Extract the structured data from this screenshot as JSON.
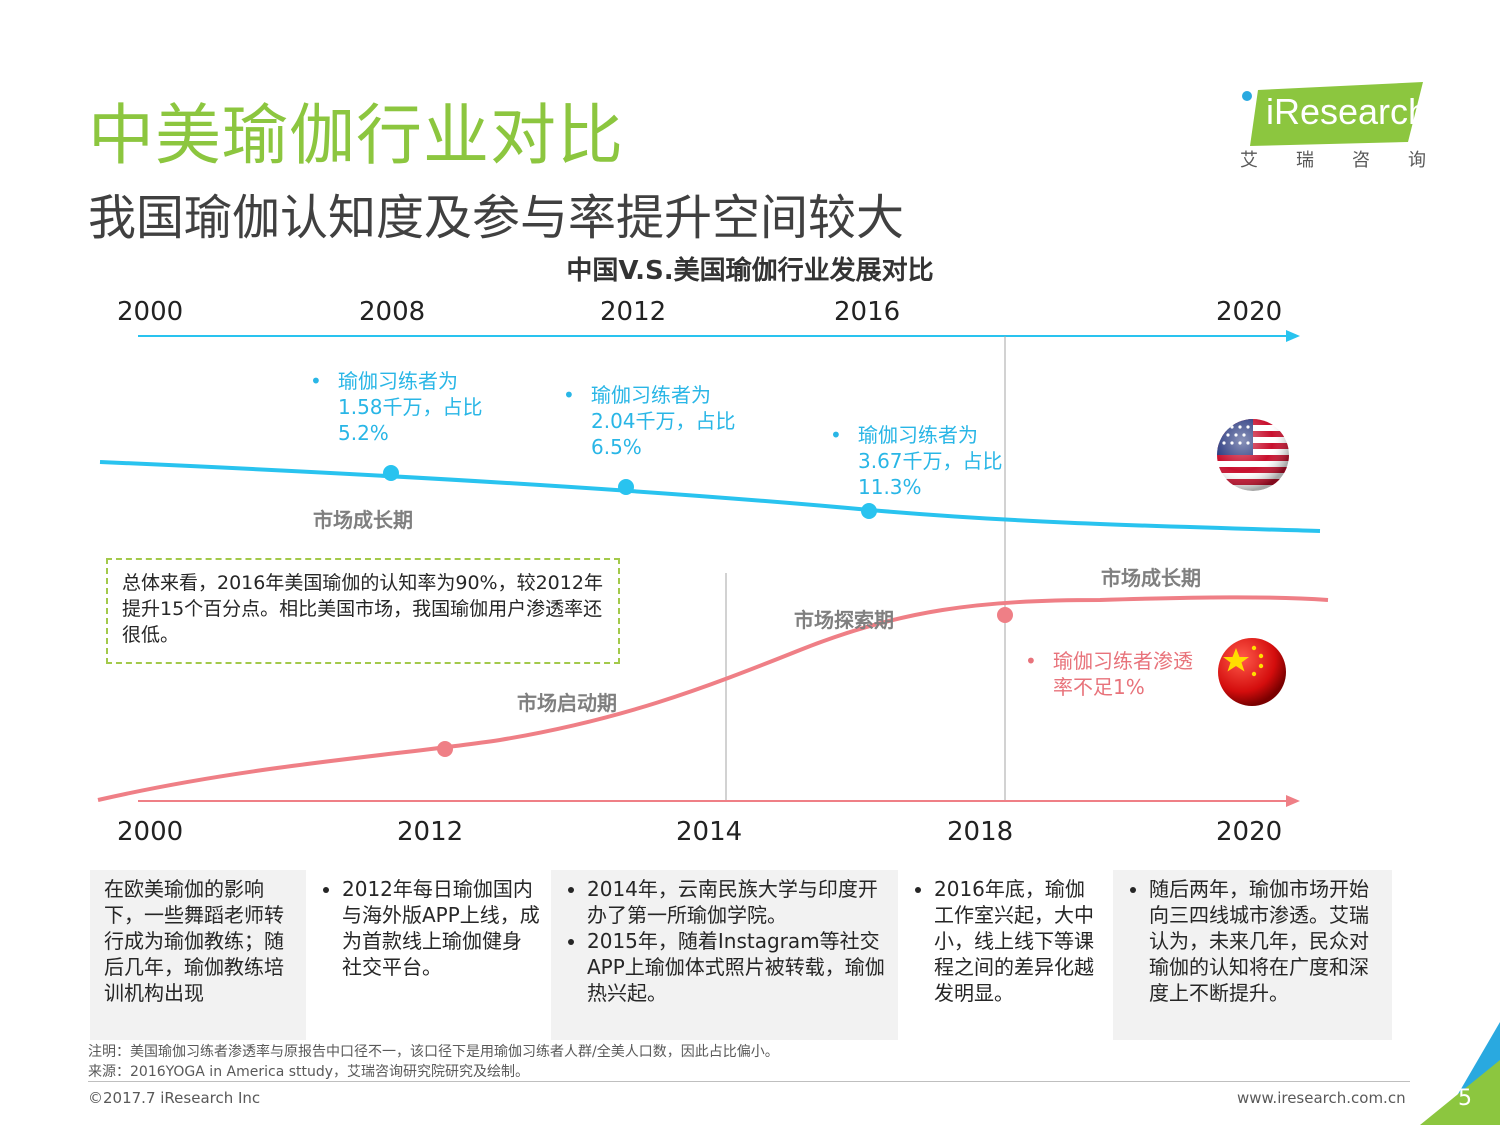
{
  "header": {
    "title": "中美瑜伽行业对比",
    "subtitle": "我国瑜伽认知度及参与率提升空间较大"
  },
  "logo": {
    "word": "iResearch",
    "sub": "艾瑞咨询",
    "green": "#8cc63f",
    "blue": "#29a9e0"
  },
  "diagram": {
    "title": "中国V.S.美国瑜伽行业发展对比",
    "us_years": [
      "2000",
      "2008",
      "2012",
      "2016",
      "2020"
    ],
    "cn_years": [
      "2000",
      "2012",
      "2014",
      "2018",
      "2020"
    ],
    "us": {
      "line_color": "#29c3ef",
      "phase": "市场成长期",
      "notes": [
        {
          "text": "瑜伽习练者为1.58千万，占比5.2%"
        },
        {
          "text": "瑜伽习练者为2.04千万，占比6.5%"
        },
        {
          "text": "瑜伽习练者为3.67千万，占比11.3%"
        }
      ]
    },
    "cn": {
      "line_color": "#ef7f86",
      "phases": [
        "市场启动期",
        "市场探索期",
        "市场成长期"
      ],
      "note": "瑜伽习练者渗透率不足1%"
    },
    "summary": "总体来看，2016年美国瑜伽的认知率为90%，较2012年提升15个百分点。相比美国市场，我国瑜伽用户渗透率还很低。"
  },
  "boxes": [
    {
      "items": [
        "在欧美瑜伽的影响下，一些舞蹈老师转行成为瑜伽教练；随后几年，瑜伽教练培训机构出现"
      ]
    },
    {
      "items": [
        "2012年每日瑜伽国内与海外版APP上线，成为首款线上瑜伽健身社交平台。"
      ]
    },
    {
      "items": [
        "2014年，云南民族大学与印度开办了第一所瑜伽学院。",
        "2015年，随着Instagram等社交APP上瑜伽体式照片被转载，瑜伽热兴起。"
      ]
    },
    {
      "items": [
        "2016年底，瑜伽工作室兴起，大中小，线上线下等课程之间的差异化越发明显。"
      ]
    },
    {
      "items": [
        "随后两年，瑜伽市场开始向三四线城市渗透。艾瑞认为，未来几年，民众对瑜伽的认知将在广度和深度上不断提升。"
      ]
    }
  ],
  "footer": {
    "footnote": "注明：美国瑜伽习练者渗透率与原报告中口径不一，该口径下是用瑜伽习练者人群/全美人口数，因此占比偏小。",
    "source": "来源：2016YOGA in America sttudy，艾瑞咨询研究院研究及绘制。",
    "copyright": "©2017.7 iResearch Inc",
    "website": "www.iresearch.com.cn",
    "page": "5"
  }
}
